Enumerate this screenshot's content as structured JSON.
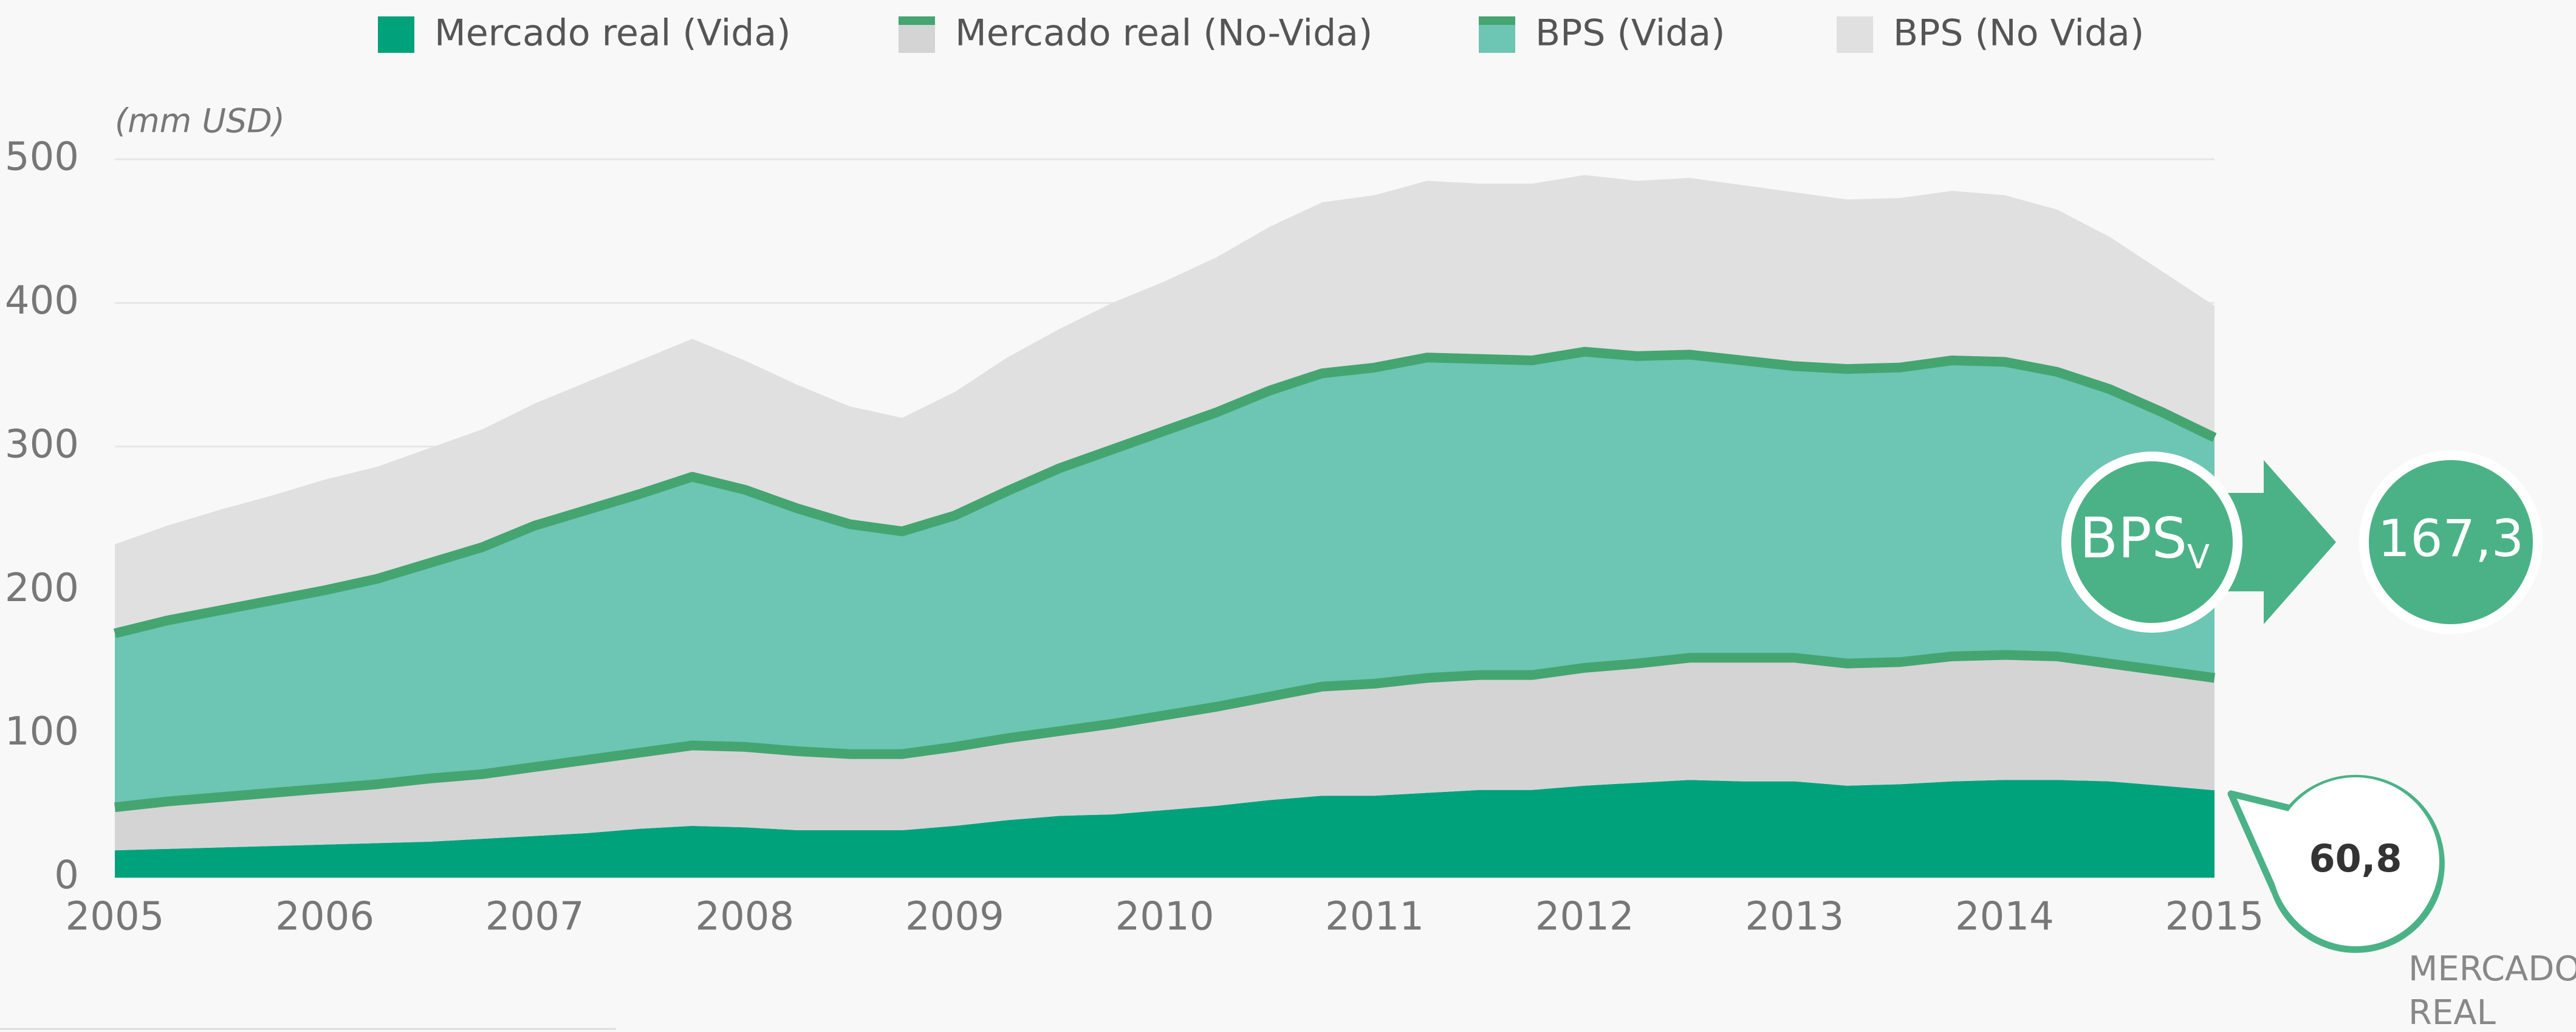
{
  "chart_data": {
    "type": "stacked_area",
    "y_label": "(mm USD)",
    "x": [
      2005,
      2005.25,
      2005.5,
      2005.75,
      2006,
      2006.25,
      2006.5,
      2006.75,
      2007,
      2007.25,
      2007.5,
      2007.75,
      2008,
      2008.25,
      2008.5,
      2008.75,
      2009,
      2009.25,
      2009.5,
      2009.75,
      2010,
      2010.25,
      2010.5,
      2010.75,
      2011,
      2011.25,
      2011.5,
      2011.75,
      2012,
      2012.25,
      2012.5,
      2012.75,
      2013,
      2013.25,
      2013.5,
      2013.75,
      2014,
      2014.25,
      2014.5,
      2014.75,
      2015
    ],
    "xlim": [
      2005,
      2015
    ],
    "xticks": [
      2005,
      2006,
      2007,
      2008,
      2009,
      2010,
      2011,
      2012,
      2013,
      2014,
      2015
    ],
    "ylim": [
      0,
      500
    ],
    "yticks": [
      0,
      100,
      200,
      300,
      400,
      500
    ],
    "grid": true,
    "line_color": "#44a571",
    "series": [
      {
        "name": "Mercado real (Vida)",
        "color": "#00a27b",
        "outline": false,
        "values": [
          19,
          20,
          21,
          22,
          23,
          24,
          25,
          27,
          29,
          31,
          34,
          36,
          35,
          33,
          33,
          33,
          36,
          40,
          43,
          44,
          47,
          50,
          54,
          57,
          57,
          59,
          61,
          61,
          64,
          66,
          68,
          67,
          67,
          64,
          65,
          67,
          68,
          68,
          67,
          64,
          60.8
        ]
      },
      {
        "name": "Mercado real (No-Vida)",
        "color": "#d4d4d4",
        "outline": true,
        "values": [
          30,
          33,
          35,
          37,
          39,
          41,
          44,
          45,
          48,
          51,
          53,
          56,
          56,
          55,
          53,
          53,
          55,
          57,
          59,
          63,
          66,
          69,
          72,
          76,
          78,
          80,
          80,
          80,
          82,
          83,
          85,
          86,
          86,
          85,
          85,
          87,
          87,
          86,
          82,
          80,
          78.2
        ]
      },
      {
        "name": "BPS (Vida)",
        "color": "#6cc6b3",
        "outline": true,
        "values": [
          121,
          126,
          130,
          134,
          138,
          143,
          150,
          158,
          168,
          174,
          180,
          187,
          179,
          169,
          160,
          155,
          161,
          172,
          183,
          191,
          198,
          205,
          213,
          218,
          220,
          223,
          220,
          219,
          220,
          214,
          211,
          207,
          203,
          205,
          205,
          206,
          204,
          198,
          191,
          180,
          167.3
        ]
      },
      {
        "name": "BPS (No Vida)",
        "color": "#e0e0e0",
        "outline": false,
        "values": [
          62,
          66,
          70,
          73,
          77,
          78,
          80,
          82,
          85,
          89,
          93,
          96,
          90,
          86,
          82,
          79,
          86,
          93,
          97,
          102,
          104,
          108,
          114,
          119,
          120,
          123,
          122,
          123,
          123,
          122,
          123,
          122,
          121,
          118,
          118,
          118,
          116,
          113,
          106,
          98,
          91.7
        ]
      }
    ],
    "annotations": [
      "BPS",
      "V",
      "167,3",
      "60,8",
      "MERCADO",
      "REAL"
    ]
  }
}
